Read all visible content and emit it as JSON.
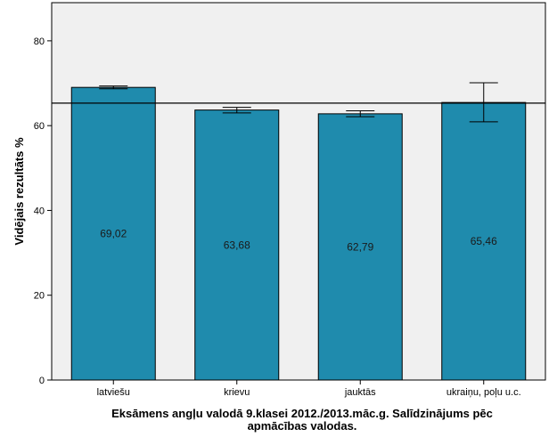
{
  "chart_data": {
    "type": "bar",
    "title_lines": [
      "Eksāmens angļu valodā 9.klasei 2012./2013.māc.g. Salīdzinājums pēc",
      "apmācības valodas."
    ],
    "xlabel": "",
    "ylabel": "Vidējais rezultāts %",
    "categories": [
      "latviešu",
      "krievu",
      "jauktās",
      "ukraiņu, poļu u.c."
    ],
    "values": [
      69.02,
      63.68,
      62.79,
      65.46
    ],
    "value_labels": [
      "69,02",
      "63,68",
      "62,79",
      "65,46"
    ],
    "error_bars": [
      {
        "low": 68.7,
        "high": 69.35
      },
      {
        "low": 63.0,
        "high": 64.3
      },
      {
        "low": 62.1,
        "high": 63.5
      },
      {
        "low": 60.9,
        "high": 70.1
      }
    ],
    "reference_line": 65.3,
    "ylim": [
      0,
      89
    ],
    "yticks": [
      0,
      20,
      40,
      60,
      80
    ],
    "grid": false,
    "colors": {
      "bar": "#1f8bad",
      "plot_background": "#f0f0f0",
      "axis": "#000000"
    }
  }
}
